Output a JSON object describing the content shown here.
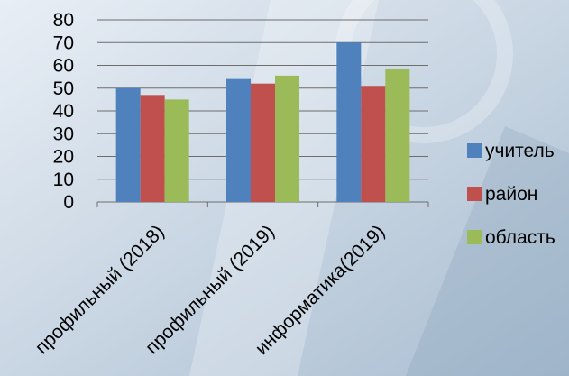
{
  "chart_data": {
    "type": "bar",
    "categories": [
      "профильный (2018)",
      "профильный (2019)",
      "информатика(2019)"
    ],
    "series": [
      {
        "name": "учитель",
        "values": [
          50,
          54,
          70
        ],
        "color": "#4f81bd"
      },
      {
        "name": "район",
        "values": [
          47,
          52,
          51
        ],
        "color": "#c0504d"
      },
      {
        "name": "область",
        "values": [
          45,
          55.5,
          58.5
        ],
        "color": "#9bbb59"
      }
    ],
    "ylim": [
      0,
      80
    ],
    "yticks": [
      "0",
      "10",
      "20",
      "30",
      "40",
      "50",
      "60",
      "70",
      "80"
    ],
    "grid": true,
    "legend_position": "right"
  }
}
